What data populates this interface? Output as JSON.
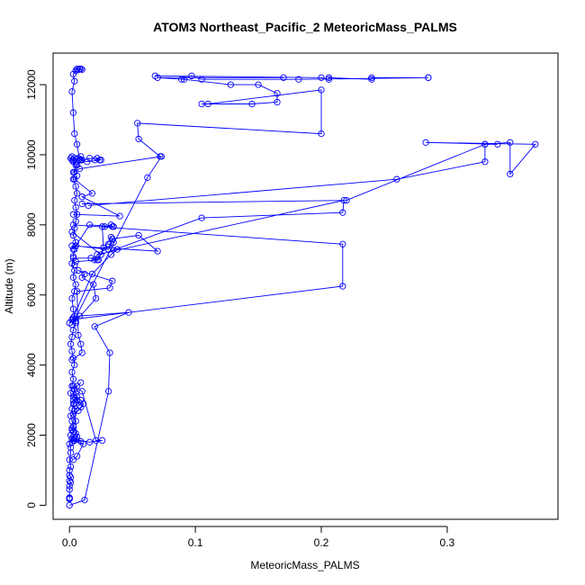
{
  "chart_data": {
    "type": "line",
    "title": "ATOM3 Northeast_Pacific_2 MeteoricMass_PALMS",
    "xlabel": "MeteoricMass_PALMS",
    "ylabel": "Altitude (m)",
    "xlim": [
      -0.013,
      0.388
    ],
    "ylim": [
      -400,
      12900
    ],
    "xticks": [
      0.0,
      0.1,
      0.2,
      0.3
    ],
    "xtick_labels": [
      "0.0",
      "0.1",
      "0.2",
      "0.3"
    ],
    "yticks": [
      0,
      2000,
      4000,
      6000,
      8000,
      10000,
      12000
    ],
    "ytick_labels": [
      "0",
      "2000",
      "4000",
      "6000",
      "8000",
      "10000",
      "12000"
    ],
    "grid": false,
    "marker": "open-circle",
    "series_color": "#0000ff",
    "series": [
      {
        "x": [
          0.0,
          0.0,
          0.0,
          0.0,
          0.0,
          0.0,
          0.001,
          0.0,
          0.001,
          0.0,
          0.0,
          0.001,
          0.0,
          0.001,
          0.001,
          0.0,
          0.002,
          0.001,
          0.003,
          0.002,
          0.005,
          0.003,
          0.002,
          0.004,
          0.003,
          0.001,
          0.002,
          0.003,
          0.002,
          0.004,
          0.003,
          0.002,
          0.001,
          0.002,
          0.003,
          0.005,
          0.004,
          0.003,
          0.002,
          0.004,
          0.005,
          0.003,
          0.004,
          0.002,
          0.003,
          0.004,
          0.005,
          0.003,
          0.004,
          0.005,
          0.006,
          0.005,
          0.004,
          0.006,
          0.005,
          0.003,
          0.004,
          0.005,
          0.003,
          0.002,
          0.001,
          0.002,
          0.004,
          0.003,
          0.005,
          0.007,
          0.009,
          0.008,
          0.006,
          0.004,
          0.003,
          0.002,
          0.004,
          0.003,
          0.005,
          0.006,
          0.008,
          0.01,
          0.009,
          0.007
        ],
        "y": [
          180,
          200,
          220,
          190,
          450,
          550,
          650,
          700,
          800,
          850,
          1000,
          1100,
          1300,
          1500,
          1650,
          1750,
          1900,
          2000,
          2100,
          2200,
          2400,
          2600,
          2750,
          2900,
          3000,
          3200,
          3400,
          3600,
          3800,
          4000,
          4200,
          4400,
          4600,
          4800,
          5000,
          5200,
          5400,
          5600,
          5900,
          6100,
          6300,
          6500,
          6700,
          6900,
          7100,
          7300,
          7500,
          7700,
          7900,
          8100,
          8300,
          8500,
          8700,
          8900,
          9100,
          9300,
          9500,
          9700,
          9800,
          9850,
          9900,
          9950,
          9900,
          9850,
          9800,
          9900,
          9950,
          9850,
          10300,
          10600,
          11200,
          11800,
          12100,
          12300,
          12400,
          12450,
          12450,
          12430,
          12450,
          12420
        ]
      },
      {
        "x": [
          0.003,
          0.006,
          0.011,
          0.003,
          0.005,
          0.009,
          0.004,
          0.002,
          0.004,
          0.006,
          0.004,
          0.003,
          0.006,
          0.008,
          0.006,
          0.005,
          0.004,
          0.003,
          0.01,
          0.021,
          0.026,
          0.016,
          0.002,
          0.005,
          0.002,
          0.003,
          0.002,
          0.001,
          0.007,
          0.009,
          0.011,
          0.009,
          0.003,
          0.004,
          0.006,
          0.009
        ],
        "y": [
          1300,
          1400,
          1750,
          1850,
          1900,
          1820,
          1850,
          1800,
          1900,
          1950,
          2700,
          2900,
          3100,
          2850,
          3000,
          3200,
          3300,
          3400,
          3250,
          1850,
          1850,
          1800,
          1900,
          2050,
          2150,
          2250,
          2400,
          2550,
          2700,
          2800,
          2900,
          3000,
          3100,
          3300,
          3400,
          3500
        ]
      },
      {
        "x": [
          0.0,
          0.012,
          0.031,
          0.032,
          0.02,
          0.047,
          0.008,
          0.003,
          0.005,
          0.021,
          0.019,
          0.01,
          0.012,
          0.007,
          0.034,
          0.032,
          0.006,
          0.007,
          0.009,
          0.01,
          0.002
        ],
        "y": [
          0,
          150,
          3250,
          4350,
          5100,
          5500,
          5400,
          5300,
          5250,
          5900,
          6300,
          6500,
          6600,
          6700,
          6400,
          6200,
          6100,
          4850,
          4600,
          4350,
          4150
        ]
      },
      {
        "x": [
          0.0,
          0.003,
          0.018,
          0.033,
          0.038,
          0.031,
          0.035,
          0.033,
          0.022,
          0.017,
          0.003,
          0.004
        ],
        "y": [
          5200,
          5350,
          6600,
          7150,
          7300,
          7450,
          7500,
          7650,
          7000,
          7050,
          7050,
          6850
        ]
      },
      {
        "x": [
          0.005,
          0.016,
          0.035,
          0.034,
          0.033,
          0.028,
          0.026,
          0.027,
          0.023,
          0.005
        ],
        "y": [
          7400,
          8000,
          7950,
          7950,
          8000,
          7950,
          7950,
          7350,
          7000,
          6950
        ]
      },
      {
        "x": [
          0.003,
          0.04,
          0.01,
          0.018,
          0.004,
          0.006
        ],
        "y": [
          8300,
          8250,
          8800,
          8900,
          9300,
          9400
        ]
      },
      {
        "x": [
          0.005,
          0.031,
          0.034,
          0.055,
          0.07,
          0.002,
          0.003
        ],
        "y": [
          7400,
          7300,
          7600,
          7700,
          7250,
          7400,
          7300
        ]
      },
      {
        "x": [
          0.003,
          0.217,
          0.217,
          0.002
        ],
        "y": [
          8000,
          7450,
          6250,
          5300
        ]
      },
      {
        "x": [
          0.002,
          0.025,
          0.105,
          0.217,
          0.218,
          0.022,
          0.02
        ],
        "y": [
          7800,
          7150,
          8200,
          8350,
          8700,
          7150,
          7000
        ]
      },
      {
        "x": [
          0.002,
          0.062,
          0.073,
          0.008,
          0.003,
          0.006,
          0.01,
          0.016,
          0.024
        ],
        "y": [
          5150,
          9350,
          9950,
          9600,
          9500,
          9700,
          9850,
          9900,
          9850
        ]
      },
      {
        "x": [
          0.02,
          0.022,
          0.025,
          0.014,
          0.009
        ],
        "y": [
          9850,
          9900,
          9850,
          9800,
          9850
        ]
      },
      {
        "x": [
          0.015,
          0.26,
          0.33,
          0.33,
          0.35,
          0.35,
          0.37,
          0.283,
          0.34,
          0.33,
          0.22,
          0.01
        ],
        "y": [
          8550,
          9300,
          9800,
          10300,
          10350,
          9450,
          10300,
          10350,
          10300,
          10300,
          8700,
          8600
        ]
      },
      {
        "x": [
          0.072,
          0.055,
          0.054,
          0.2,
          0.2,
          0.11,
          0.105,
          0.145,
          0.165,
          0.165,
          0.15,
          0.128,
          0.091,
          0.07,
          0.17
        ],
        "y": [
          9950,
          10450,
          10900,
          10600,
          11850,
          11450,
          11450,
          11450,
          11500,
          11750,
          12000,
          12000,
          12150,
          12200,
          12200
        ]
      },
      {
        "x": [
          0.068,
          0.2,
          0.206,
          0.206,
          0.24,
          0.24,
          0.285,
          0.285,
          0.182,
          0.105,
          0.097,
          0.089
        ],
        "y": [
          12250,
          12200,
          12150,
          12200,
          12150,
          12200,
          12200,
          12200,
          12150,
          12150,
          12250,
          12150
        ]
      }
    ]
  }
}
